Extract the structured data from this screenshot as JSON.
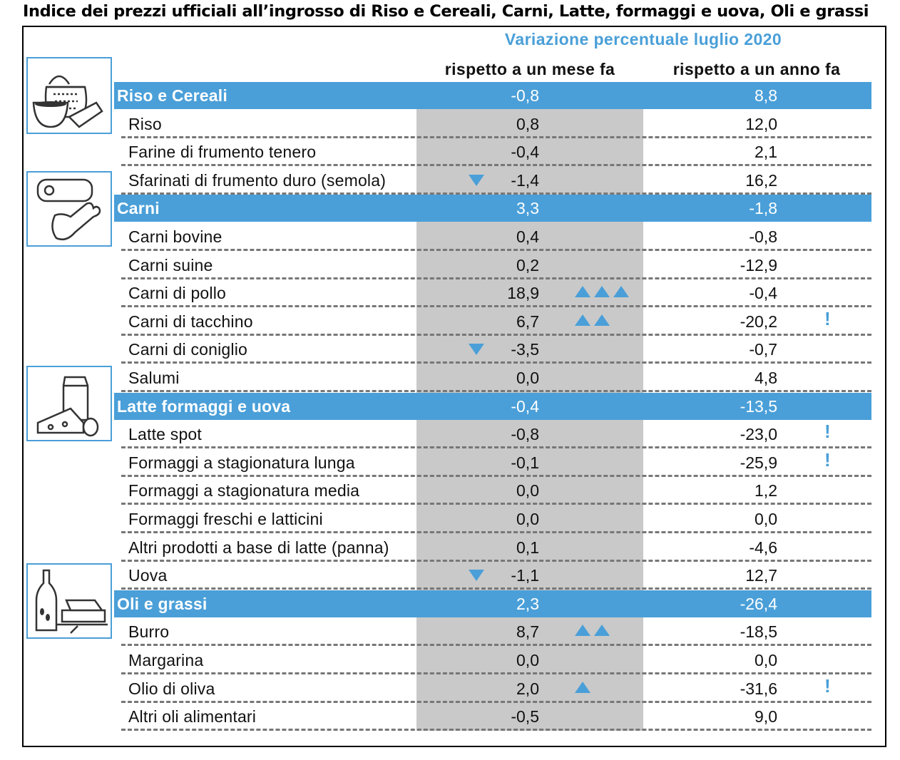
{
  "title": "Indice dei prezzi ufficiali all’ingrosso di Riso e Cereali, Carni, Latte, formaggi e uova, Oli e grassi",
  "header": {
    "main": "Variazione percentuale luglio 2020",
    "col1": "rispetto a un mese fa",
    "col2": "rispetto a un anno fa"
  },
  "colors": {
    "accent": "#4a9fd8",
    "shade": "#c9c9c9"
  },
  "icons": [
    "grain-sack-icon",
    "meat-icon",
    "dairy-icon",
    "oil-butter-icon"
  ],
  "rows": [
    {
      "type": "cat",
      "label": "Riso e Cereali",
      "m": "-0,8",
      "y": "8,8"
    },
    {
      "type": "item",
      "label": "Riso",
      "m": "0,8",
      "y": "12,0"
    },
    {
      "type": "item",
      "label": "Farine di frumento tenero",
      "m": "-0,4",
      "y": "2,1"
    },
    {
      "type": "item",
      "label": "Sfarinati di frumento duro (semola)",
      "m": "-1,4",
      "y": "16,2",
      "down": true
    },
    {
      "type": "cat",
      "label": "Carni",
      "m": "3,3",
      "y": "-1,8"
    },
    {
      "type": "item",
      "label": "Carni bovine",
      "m": "0,4",
      "y": "-0,8"
    },
    {
      "type": "item",
      "label": "Carni suine",
      "m": "0,2",
      "y": "-12,9"
    },
    {
      "type": "item",
      "label": "Carni di pollo",
      "m": "18,9",
      "y": "-0,4",
      "up": 3
    },
    {
      "type": "item",
      "label": "Carni di tacchino",
      "m": "6,7",
      "y": "-20,2",
      "up": 2,
      "warn": "!"
    },
    {
      "type": "item",
      "label": "Carni di coniglio",
      "m": "-3,5",
      "y": "-0,7",
      "down": true
    },
    {
      "type": "item",
      "label": "Salumi",
      "m": "0,0",
      "y": "4,8"
    },
    {
      "type": "cat",
      "label": "Latte formaggi e uova",
      "m": "-0,4",
      "y": "-13,5"
    },
    {
      "type": "item",
      "label": "Latte spot",
      "m": "-0,8",
      "y": "-23,0",
      "warn": "!"
    },
    {
      "type": "item",
      "label": "Formaggi a stagionatura lunga",
      "m": "-0,1",
      "y": "-25,9",
      "warn": "!"
    },
    {
      "type": "item",
      "label": "Formaggi a stagionatura media",
      "m": "0,0",
      "y": "1,2"
    },
    {
      "type": "item",
      "label": "Formaggi freschi e latticini",
      "m": "0,0",
      "y": "0,0"
    },
    {
      "type": "item",
      "label": "Altri prodotti a base di latte (panna)",
      "m": "0,1",
      "y": "-4,6"
    },
    {
      "type": "item",
      "label": "Uova",
      "m": "-1,1",
      "y": "12,7",
      "down": true
    },
    {
      "type": "cat",
      "label": "Oli e grassi",
      "m": "2,3",
      "y": "-26,4"
    },
    {
      "type": "item",
      "label": "Burro",
      "m": "8,7",
      "y": "-18,5",
      "up": 2
    },
    {
      "type": "item",
      "label": "Margarina",
      "m": "0,0",
      "y": "0,0"
    },
    {
      "type": "item",
      "label": "Olio di oliva",
      "m": "2,0",
      "y": "-31,6",
      "up": 1,
      "warn": "!"
    },
    {
      "type": "item",
      "label": "Altri oli alimentari",
      "m": "-0,5",
      "y": "9,0"
    }
  ]
}
